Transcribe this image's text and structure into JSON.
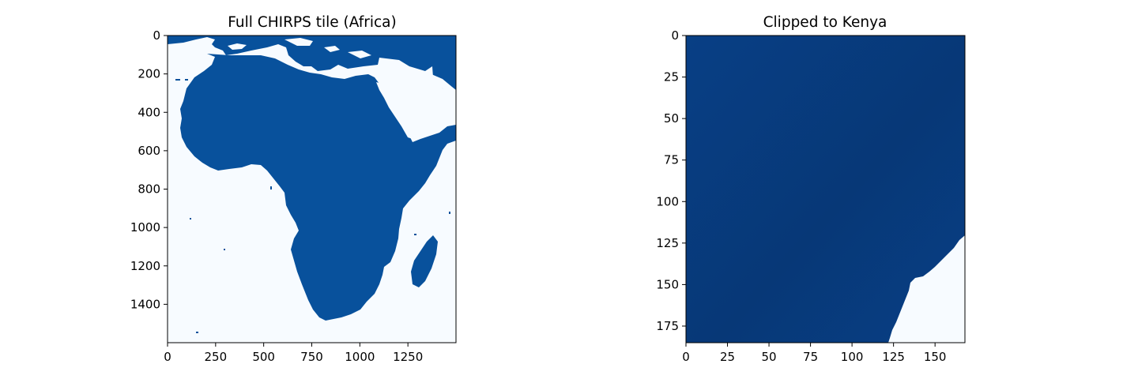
{
  "colors": {
    "water": "#f7fbff",
    "land_africa": "#08519c",
    "land_africa_light": "#0a57a2",
    "land_kenya": "#083f85",
    "land_kenya_dark": "#073775",
    "axis": "#000000"
  },
  "chart_data": [
    {
      "type": "heatmap",
      "title": "Full CHIRPS tile (Africa)",
      "xlabel": "",
      "ylabel": "",
      "xlim": [
        0,
        1500
      ],
      "ylim": [
        1600,
        0
      ],
      "x_ticks": [
        0,
        250,
        500,
        750,
        1000,
        1250
      ],
      "x_tick_labels": [
        "0",
        "250",
        "500",
        "750",
        "1000",
        "1250"
      ],
      "y_ticks": [
        0,
        200,
        400,
        600,
        800,
        1000,
        1200,
        1400
      ],
      "y_tick_labels": [
        "0",
        "200",
        "400",
        "600",
        "800",
        "1000",
        "1200",
        "1400"
      ],
      "colormap": "Blues",
      "grid": false
    },
    {
      "type": "heatmap",
      "title": "Clipped to Kenya",
      "xlabel": "",
      "ylabel": "",
      "xlim": [
        0,
        168
      ],
      "ylim": [
        185,
        0
      ],
      "x_ticks": [
        0,
        25,
        50,
        75,
        100,
        125,
        150
      ],
      "x_tick_labels": [
        "0",
        "25",
        "50",
        "75",
        "100",
        "125",
        "150"
      ],
      "y_ticks": [
        0,
        25,
        50,
        75,
        100,
        125,
        150,
        175
      ],
      "y_tick_labels": [
        "0",
        "25",
        "50",
        "75",
        "100",
        "125",
        "150",
        "175"
      ],
      "colormap": "Blues",
      "grid": false
    }
  ]
}
